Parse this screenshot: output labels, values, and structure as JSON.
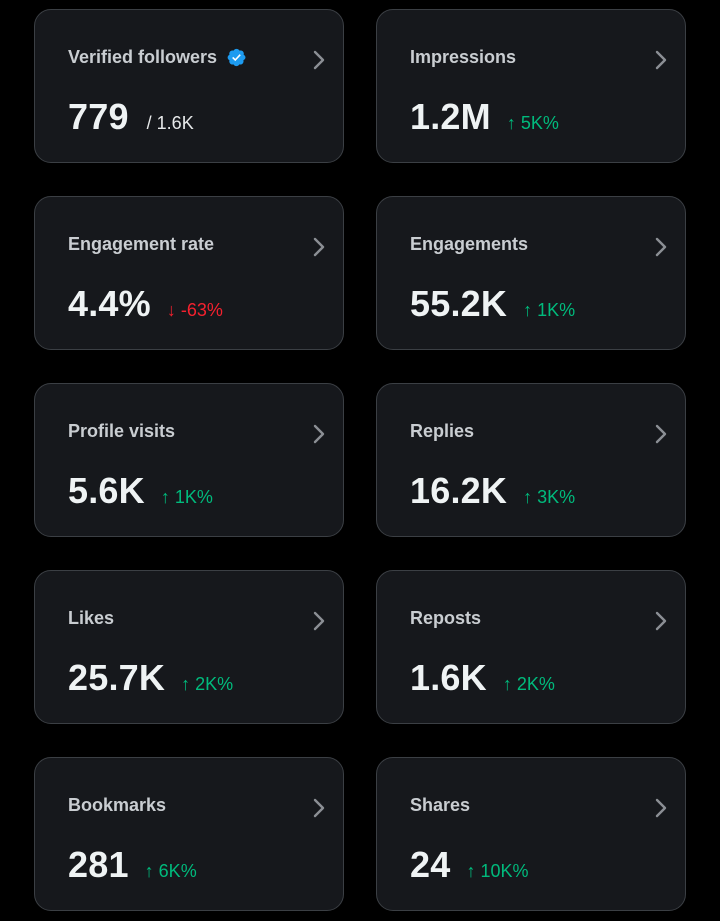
{
  "colors": {
    "background": "#000000",
    "card": "#16181c",
    "card_border": "#3b3f44",
    "positive": "#00ba7c",
    "negative": "#f4212e",
    "verified": "#1d9bf0"
  },
  "cards": [
    {
      "title": "Verified followers",
      "value": "779",
      "sub": "/ 1.6K",
      "delta": "",
      "trend": "",
      "verified_icon": true
    },
    {
      "title": "Impressions",
      "value": "1.2M",
      "sub": "",
      "delta": "5K%",
      "trend": "up"
    },
    {
      "title": "Engagement rate",
      "value": "4.4%",
      "sub": "",
      "delta": "-63%",
      "trend": "down"
    },
    {
      "title": "Engagements",
      "value": "55.2K",
      "sub": "",
      "delta": "1K%",
      "trend": "up"
    },
    {
      "title": "Profile visits",
      "value": "5.6K",
      "sub": "",
      "delta": "1K%",
      "trend": "up"
    },
    {
      "title": "Replies",
      "value": "16.2K",
      "sub": "",
      "delta": "3K%",
      "trend": "up"
    },
    {
      "title": "Likes",
      "value": "25.7K",
      "sub": "",
      "delta": "2K%",
      "trend": "up"
    },
    {
      "title": "Reposts",
      "value": "1.6K",
      "sub": "",
      "delta": "2K%",
      "trend": "up"
    },
    {
      "title": "Bookmarks",
      "value": "281",
      "sub": "",
      "delta": "6K%",
      "trend": "up"
    },
    {
      "title": "Shares",
      "value": "24",
      "sub": "",
      "delta": "10K%",
      "trend": "up"
    }
  ]
}
